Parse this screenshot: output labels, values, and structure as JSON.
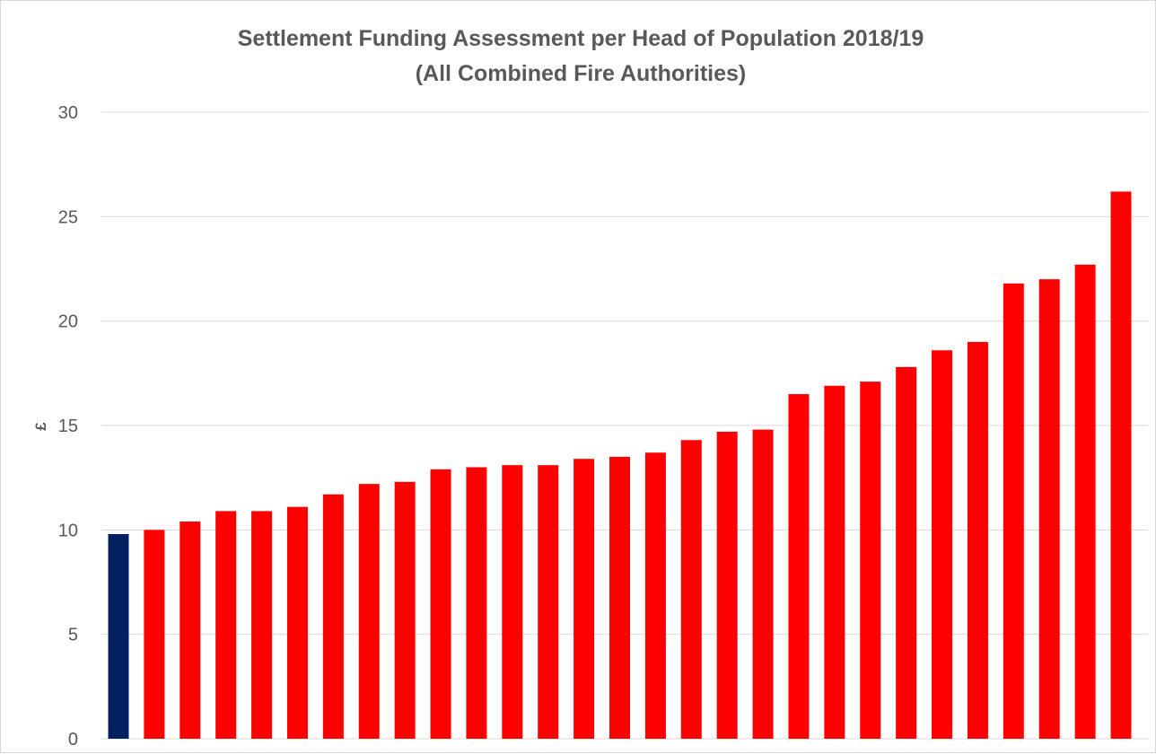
{
  "chart_data": {
    "type": "bar",
    "title": "Settlement Funding Assessment per Head of Population 2018/19",
    "subtitle": "(All Combined Fire Authorities)",
    "ylabel": "£",
    "xlabel": "",
    "ylim": [
      0,
      30
    ],
    "yticks": [
      "0",
      "5",
      "10",
      "15",
      "20",
      "25",
      "30"
    ],
    "grid": true,
    "legend": "none",
    "colors": {
      "highlight": "#002060",
      "default": "#ff0000",
      "gridline": "#d9d9d9",
      "text": "#595959"
    },
    "highlight_index": 0,
    "values": [
      9.8,
      10.0,
      10.4,
      10.9,
      10.9,
      11.1,
      11.7,
      12.2,
      12.3,
      12.9,
      13.0,
      13.1,
      13.1,
      13.4,
      13.5,
      13.7,
      14.3,
      14.7,
      14.8,
      16.5,
      16.9,
      17.1,
      17.8,
      18.6,
      19.0,
      21.8,
      22.0,
      22.7,
      26.2
    ]
  }
}
